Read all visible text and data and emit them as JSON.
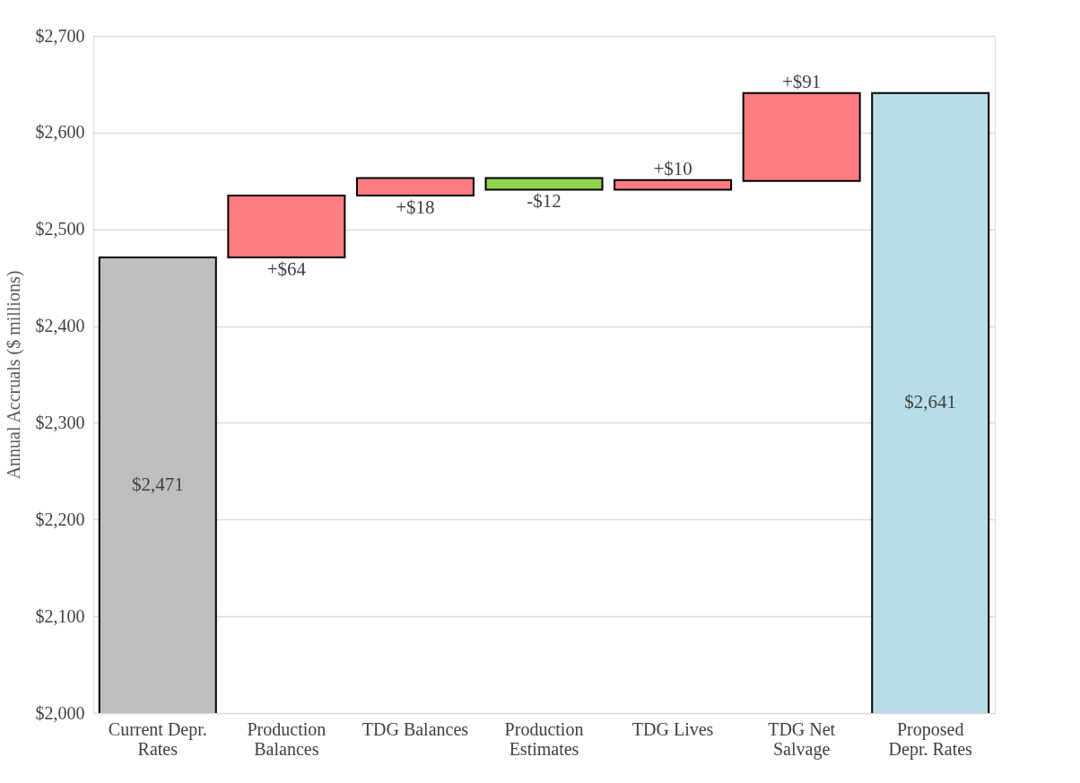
{
  "chart_data": {
    "type": "bar",
    "ylabel": "Annual Accruals ($ millions)",
    "categories": [
      "Current Depr. Rates",
      "Production Balances",
      "TDG Balances",
      "Production Estimates",
      "TDG Lives",
      "TDG Net Salvage",
      "Proposed Depr. Rates"
    ],
    "values": [
      2471,
      64,
      18,
      -12,
      10,
      91,
      2641
    ],
    "base": [
      null,
      2471,
      2535,
      2553,
      2541,
      2550,
      null
    ],
    "colors": [
      "#bfbfbf",
      "#ff7c80",
      "#ff7c80",
      "#92d050",
      "#ff7c80",
      "#ff7c80",
      "#b7dee8"
    ],
    "value_labels": [
      "$2,471",
      "+$64",
      "+$18",
      "-$12",
      "+$10",
      "+$91",
      "$2,641"
    ],
    "ylim": [
      2000,
      2700
    ],
    "yticks": [
      {
        "value": 2000,
        "label": "$2,000"
      },
      {
        "value": 2100,
        "label": "$2,100"
      },
      {
        "value": 2200,
        "label": "$2,200"
      },
      {
        "value": 2300,
        "label": "$2,300"
      },
      {
        "value": 2400,
        "label": "$2,400"
      },
      {
        "value": 2500,
        "label": "$2,500"
      },
      {
        "value": 2600,
        "label": "$2,600"
      },
      {
        "value": 2700,
        "label": "$2,700"
      }
    ],
    "grid": "y"
  }
}
